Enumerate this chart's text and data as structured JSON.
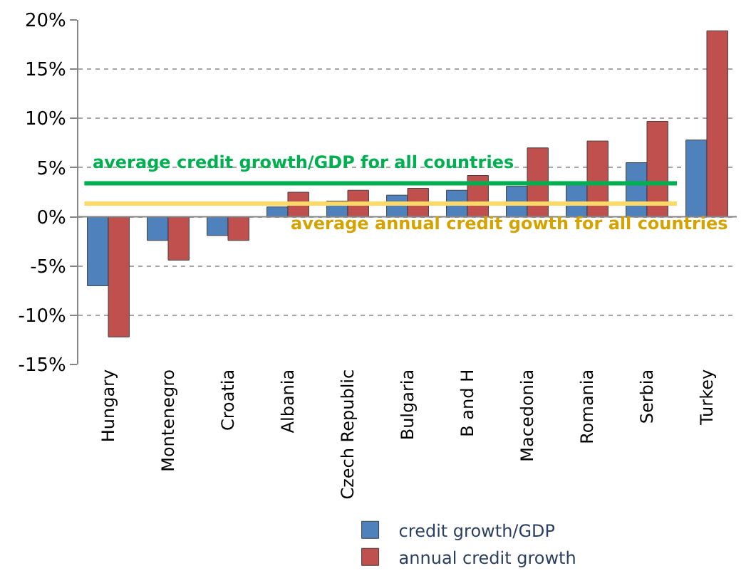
{
  "chart_data": {
    "type": "bar",
    "categories": [
      "Hungary",
      "Montenegro",
      "Croatia",
      "Albania",
      "Czech Republic",
      "Bulgaria",
      "B and H",
      "Macedonia",
      "Romania",
      "Serbia",
      "Turkey"
    ],
    "series": [
      {
        "name": "credit growth/GDP",
        "color": "#4f81bd",
        "values": [
          -7.0,
          -2.4,
          -1.9,
          1.0,
          1.6,
          2.2,
          2.7,
          3.1,
          3.3,
          5.5,
          7.8
        ]
      },
      {
        "name": "annual credit growth",
        "color": "#c0504d",
        "values": [
          -12.2,
          -4.4,
          -2.4,
          2.5,
          2.7,
          2.9,
          4.2,
          7.0,
          7.7,
          9.7,
          18.9
        ]
      }
    ],
    "ylim": [
      -15,
      20
    ],
    "yticks": [
      {
        "value": -15,
        "label": "-15%"
      },
      {
        "value": -10,
        "label": "-10%"
      },
      {
        "value": -5,
        "label": "-5%"
      },
      {
        "value": 0,
        "label": "0%"
      },
      {
        "value": 5,
        "label": "5%"
      },
      {
        "value": 10,
        "label": "10%"
      },
      {
        "value": 15,
        "label": "15%"
      },
      {
        "value": 20,
        "label": "20%"
      }
    ],
    "ref_lines": [
      {
        "axis": "y",
        "value": 3.4,
        "label": "average credit growth/GDP for all countries",
        "color": "#00b050"
      },
      {
        "axis": "y",
        "value": 1.35,
        "label": "average annual credit gowth for all countries",
        "color": "#ffd966"
      }
    ],
    "grid": "y",
    "legend": "bottom"
  }
}
